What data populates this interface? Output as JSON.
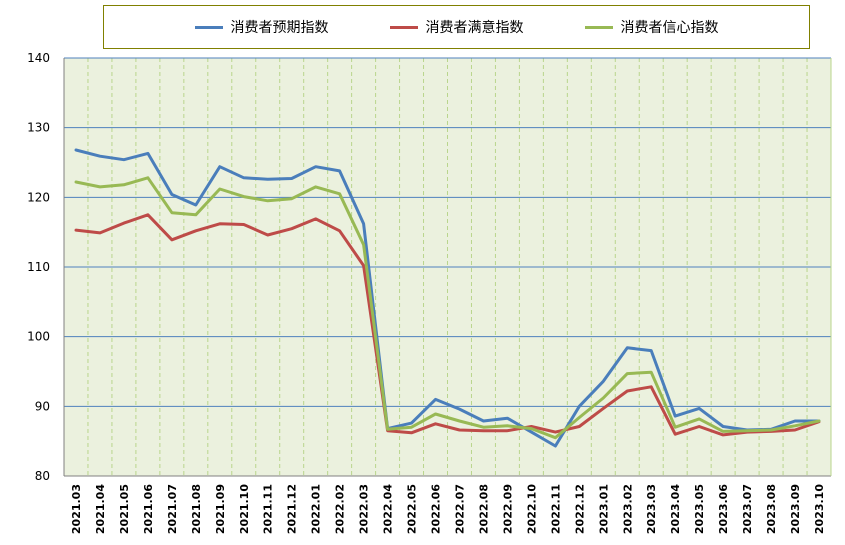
{
  "chart_data": {
    "type": "line",
    "title": "",
    "xlabel": "",
    "ylabel": "",
    "ylim": [
      80,
      140
    ],
    "yticks": [
      80,
      90,
      100,
      110,
      120,
      130,
      140
    ],
    "grid": true,
    "legend_position": "top",
    "categories": [
      "2021.03",
      "2021.04",
      "2021.05",
      "2021.06",
      "2021.07",
      "2021.08",
      "2021.09",
      "2021.10",
      "2021.11",
      "2021.12",
      "2022.01",
      "2022.02",
      "2022.03",
      "2022.04",
      "2022.05",
      "2022.06",
      "2022.07",
      "2022.08",
      "2022.09",
      "2022.10",
      "2022.11",
      "2022.12",
      "2023.01",
      "2023.02",
      "2023.03",
      "2023.04",
      "2023.05",
      "2023.06",
      "2023.07",
      "2023.08",
      "2023.09",
      "2023.10"
    ],
    "series": [
      {
        "name": "消费者预期指数",
        "color": "#4A7EBB",
        "values": [
          126.8,
          125.9,
          125.4,
          126.3,
          120.4,
          118.9,
          124.4,
          122.8,
          122.6,
          122.7,
          124.4,
          123.8,
          116.2,
          86.8,
          87.6,
          91.0,
          89.6,
          87.9,
          88.3,
          86.3,
          84.3,
          90.0,
          93.6,
          98.4,
          98.0,
          88.6,
          89.7,
          87.1,
          86.6,
          86.7,
          87.9,
          87.9
        ]
      },
      {
        "name": "消费者满意指数",
        "color": "#BE4B48",
        "values": [
          115.3,
          114.9,
          116.3,
          117.5,
          113.9,
          115.2,
          116.2,
          116.1,
          114.6,
          115.5,
          116.9,
          115.2,
          110.2,
          86.5,
          86.2,
          87.5,
          86.6,
          86.5,
          86.5,
          87.1,
          86.3,
          87.1,
          89.7,
          92.2,
          92.8,
          86.0,
          87.1,
          85.9,
          86.3,
          86.4,
          86.6,
          87.8
        ]
      },
      {
        "name": "消费者信心指数",
        "color": "#98B954",
        "values": [
          122.2,
          121.5,
          121.8,
          122.8,
          117.8,
          117.5,
          121.2,
          120.1,
          119.5,
          119.8,
          121.5,
          120.5,
          113.2,
          86.7,
          87.0,
          88.9,
          87.9,
          87.0,
          87.2,
          86.8,
          85.5,
          88.4,
          91.2,
          94.7,
          94.9,
          87.0,
          88.2,
          86.4,
          86.5,
          86.6,
          87.2,
          87.9
        ]
      }
    ]
  }
}
